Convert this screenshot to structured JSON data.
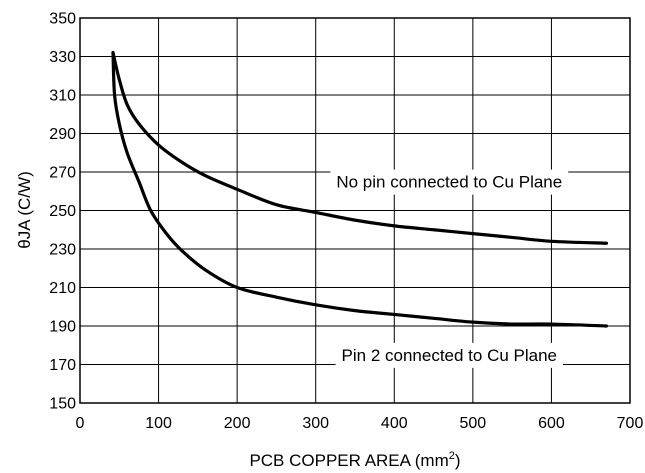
{
  "chart_data": {
    "type": "line",
    "xlabel": "PCB COPPER AREA (mm",
    "xlabel_superscript": "2",
    "xlabel_suffix": ")",
    "ylabel": "θJA (C/W)",
    "xlim": [
      0,
      700
    ],
    "ylim": [
      150,
      350
    ],
    "x_ticks": [
      0,
      100,
      200,
      300,
      400,
      500,
      600,
      700
    ],
    "y_ticks": [
      150,
      170,
      190,
      210,
      230,
      250,
      270,
      290,
      310,
      330,
      350
    ],
    "x_tick_labels": [
      "0",
      "100",
      "200",
      "300",
      "400",
      "500",
      "600",
      "700"
    ],
    "y_tick_labels": [
      "150",
      "170",
      "190",
      "210",
      "230",
      "250",
      "270",
      "290",
      "310",
      "330",
      "350"
    ],
    "grid": true,
    "series": [
      {
        "x": [
          42,
          50,
          60,
          75,
          100,
          130,
          160,
          200,
          250,
          300,
          350,
          400,
          450,
          500,
          550,
          600,
          670
        ],
        "y": [
          332,
          318,
          305,
          295,
          284,
          275,
          268,
          261,
          253,
          249,
          245,
          242,
          240,
          238,
          236,
          234,
          233
        ],
        "color": "#000000"
      },
      {
        "x": [
          42,
          44,
          50,
          60,
          75,
          90,
          110,
          130,
          160,
          200,
          250,
          300,
          350,
          400,
          450,
          500,
          550,
          600,
          670
        ],
        "y": [
          332,
          310,
          295,
          280,
          265,
          250,
          238,
          229,
          219,
          210,
          205,
          201,
          198,
          196,
          194,
          192,
          191,
          191,
          190
        ],
        "color": "#000000"
      }
    ],
    "annotations": [
      {
        "text": "No pin connected to Cu Plane",
        "x": 470,
        "y": 265
      },
      {
        "text": "Pin 2 connected to Cu Plane",
        "x": 470,
        "y": 175
      }
    ]
  }
}
